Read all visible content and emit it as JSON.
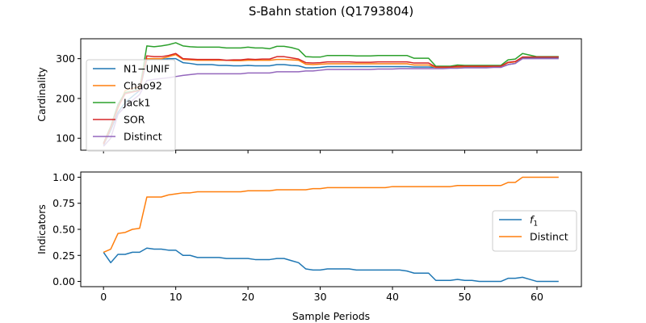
{
  "figure": {
    "title": "S-Bahn station (Q1793804)"
  },
  "chart_data": [
    {
      "type": "line",
      "title": "",
      "xlabel": "",
      "ylabel": "Cardinality",
      "xlim": [
        -3.15,
        66.15
      ],
      "ylim": [
        70,
        350
      ],
      "xticks": [
        0,
        10,
        20,
        30,
        40,
        50,
        60
      ],
      "yticks": [
        100,
        200,
        300
      ],
      "show_xtick_labels": false,
      "grid": false,
      "legend": "upper-left",
      "series": [
        {
          "name": "N1−UNIF",
          "color": "#1f77b4",
          "values": [
            83,
            120,
            165,
            190,
            205,
            220,
            297,
            298,
            298,
            300,
            300,
            290,
            288,
            285,
            285,
            285,
            283,
            283,
            282,
            282,
            283,
            282,
            282,
            282,
            285,
            285,
            283,
            282,
            277,
            277,
            278,
            280,
            280,
            280,
            280,
            280,
            280,
            280,
            280,
            280,
            280,
            280,
            280,
            279,
            279,
            279,
            278,
            278,
            278,
            278,
            279,
            279,
            279,
            279,
            279,
            279,
            285,
            288,
            302,
            302,
            302,
            302,
            302,
            302
          ]
        },
        {
          "name": "Chao92",
          "color": "#ff7f0e",
          "values": [
            85,
            125,
            175,
            220,
            225,
            230,
            300,
            300,
            300,
            305,
            310,
            298,
            297,
            296,
            296,
            296,
            296,
            296,
            295,
            295,
            296,
            296,
            296,
            296,
            298,
            298,
            297,
            296,
            286,
            285,
            286,
            287,
            287,
            287,
            287,
            287,
            287,
            287,
            287,
            287,
            287,
            287,
            287,
            284,
            284,
            284,
            278,
            278,
            278,
            279,
            280,
            280,
            280,
            280,
            280,
            280,
            290,
            292,
            304,
            304,
            304,
            304,
            304,
            304
          ]
        },
        {
          "name": "Jack1",
          "color": "#2ca02c",
          "values": [
            88,
            130,
            185,
            215,
            218,
            222,
            332,
            330,
            332,
            335,
            340,
            332,
            330,
            329,
            329,
            329,
            329,
            327,
            327,
            327,
            329,
            327,
            327,
            325,
            331,
            331,
            328,
            323,
            305,
            304,
            304,
            308,
            308,
            308,
            308,
            307,
            307,
            307,
            308,
            308,
            308,
            308,
            308,
            301,
            301,
            301,
            281,
            281,
            281,
            284,
            283,
            283,
            283,
            283,
            283,
            283,
            297,
            299,
            313,
            309,
            305,
            305,
            305,
            305
          ]
        },
        {
          "name": "SOR",
          "color": "#d62728",
          "values": [
            86,
            126,
            178,
            212,
            216,
            220,
            307,
            305,
            305,
            308,
            313,
            300,
            299,
            298,
            298,
            298,
            298,
            296,
            297,
            297,
            299,
            298,
            299,
            299,
            305,
            305,
            302,
            299,
            290,
            289,
            290,
            292,
            292,
            292,
            292,
            291,
            291,
            291,
            292,
            292,
            292,
            292,
            292,
            289,
            289,
            289,
            279,
            279,
            279,
            281,
            281,
            281,
            281,
            281,
            281,
            281,
            291,
            293,
            304,
            304,
            304,
            304,
            304,
            304
          ]
        },
        {
          "name": "Distinct",
          "color": "#9467bd",
          "values": [
            80,
            100,
            160,
            180,
            195,
            210,
            245,
            248,
            250,
            252,
            255,
            258,
            260,
            262,
            262,
            262,
            262,
            262,
            262,
            262,
            264,
            264,
            264,
            264,
            267,
            267,
            267,
            267,
            269,
            269,
            271,
            273,
            273,
            273,
            273,
            273,
            273,
            273,
            274,
            274,
            274,
            275,
            275,
            275,
            275,
            275,
            275,
            275,
            276,
            276,
            277,
            277,
            277,
            277,
            278,
            278,
            285,
            288,
            300,
            300,
            300,
            300,
            300,
            300
          ]
        }
      ]
    },
    {
      "type": "line",
      "title": "",
      "xlabel": "Sample Periods",
      "ylabel": "Indicators",
      "xlim": [
        -3.15,
        66.15
      ],
      "ylim": [
        -0.05,
        1.05
      ],
      "xticks": [
        0,
        10,
        20,
        30,
        40,
        50,
        60
      ],
      "yticks": [
        "0.00",
        "0.25",
        "0.50",
        "0.75",
        "1.00"
      ],
      "show_xtick_labels": true,
      "grid": false,
      "legend": "center-right",
      "series": [
        {
          "name": "f1",
          "legend_label": "f",
          "legend_subscript": "1",
          "color": "#1f77b4",
          "values": [
            0.28,
            0.18,
            0.26,
            0.26,
            0.28,
            0.28,
            0.32,
            0.31,
            0.31,
            0.3,
            0.3,
            0.25,
            0.25,
            0.23,
            0.23,
            0.23,
            0.23,
            0.22,
            0.22,
            0.22,
            0.22,
            0.21,
            0.21,
            0.21,
            0.22,
            0.22,
            0.2,
            0.18,
            0.12,
            0.11,
            0.11,
            0.12,
            0.12,
            0.12,
            0.12,
            0.11,
            0.11,
            0.11,
            0.11,
            0.11,
            0.11,
            0.11,
            0.1,
            0.08,
            0.08,
            0.08,
            0.01,
            0.01,
            0.01,
            0.02,
            0.01,
            0.01,
            0.0,
            0.0,
            0.0,
            0.0,
            0.03,
            0.03,
            0.04,
            0.02,
            0.0,
            0.0,
            0.0,
            0.0
          ]
        },
        {
          "name": "Distinct",
          "legend_label": "Distinct",
          "legend_subscript": "",
          "color": "#ff7f0e",
          "values": [
            0.28,
            0.31,
            0.46,
            0.47,
            0.5,
            0.51,
            0.81,
            0.81,
            0.81,
            0.83,
            0.84,
            0.85,
            0.85,
            0.86,
            0.86,
            0.86,
            0.86,
            0.86,
            0.86,
            0.86,
            0.87,
            0.87,
            0.87,
            0.87,
            0.88,
            0.88,
            0.88,
            0.88,
            0.88,
            0.89,
            0.89,
            0.9,
            0.9,
            0.9,
            0.9,
            0.9,
            0.9,
            0.9,
            0.9,
            0.9,
            0.91,
            0.91,
            0.91,
            0.91,
            0.91,
            0.91,
            0.91,
            0.91,
            0.91,
            0.92,
            0.92,
            0.92,
            0.92,
            0.92,
            0.92,
            0.92,
            0.95,
            0.95,
            1.0,
            1.0,
            1.0,
            1.0,
            1.0,
            1.0
          ]
        }
      ]
    }
  ]
}
